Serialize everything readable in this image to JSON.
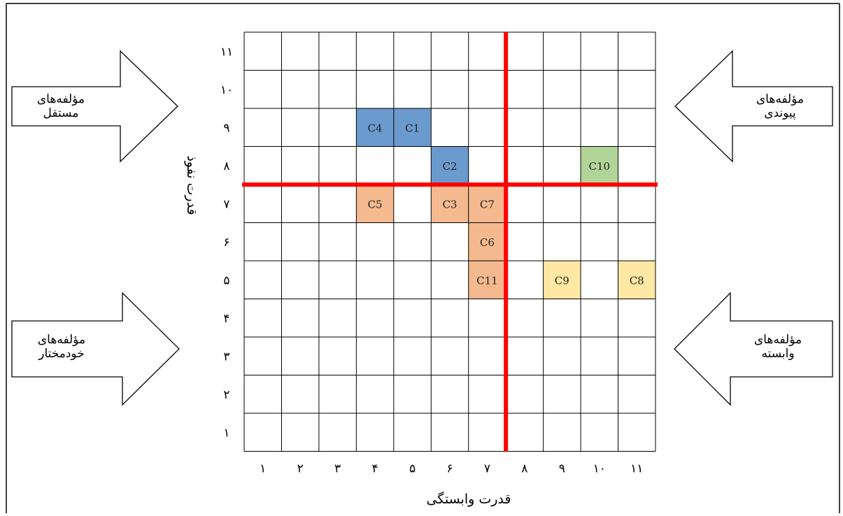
{
  "chart_data": {
    "type": "heatmap",
    "title": "",
    "xlabel": "قدرت وابستگی",
    "ylabel": "قدرت نفوذ",
    "x_ticks": [
      "۱",
      "۲",
      "۳",
      "۴",
      "۵",
      "۶",
      "۷",
      "۸",
      "۹",
      "۱۰",
      "۱۱"
    ],
    "y_ticks": [
      "۱",
      "۲",
      "۳",
      "۴",
      "۵",
      "۶",
      "۷",
      "۸",
      "۹",
      "۱۰",
      "۱۱"
    ],
    "xlim": [
      1,
      11
    ],
    "ylim": [
      1,
      11
    ],
    "threshold_x": 7.5,
    "threshold_y": 7.5,
    "grid": true,
    "group_colors": {
      "independent": "#5b8fc9",
      "linkage": "#a9d08e",
      "autonomous": "#f4b183",
      "dependent": "#ffe699",
      "divider": "#ff0000"
    },
    "points": [
      {
        "label": "C1",
        "x": 5,
        "y": 9,
        "group": "independent"
      },
      {
        "label": "C2",
        "x": 6,
        "y": 8,
        "group": "independent"
      },
      {
        "label": "C3",
        "x": 6,
        "y": 7,
        "group": "autonomous"
      },
      {
        "label": "C4",
        "x": 4,
        "y": 9,
        "group": "independent"
      },
      {
        "label": "C5",
        "x": 4,
        "y": 7,
        "group": "autonomous"
      },
      {
        "label": "C6",
        "x": 7,
        "y": 6,
        "group": "autonomous"
      },
      {
        "label": "C7",
        "x": 7,
        "y": 7,
        "group": "autonomous"
      },
      {
        "label": "C8",
        "x": 11,
        "y": 5,
        "group": "dependent"
      },
      {
        "label": "C9",
        "x": 9,
        "y": 5,
        "group": "dependent"
      },
      {
        "label": "C10",
        "x": 10,
        "y": 8,
        "group": "linkage"
      },
      {
        "label": "C11",
        "x": 7,
        "y": 5,
        "group": "autonomous"
      }
    ]
  },
  "quadrants": {
    "top_left": [
      "مؤلفه‌های",
      "مستقل"
    ],
    "top_right": [
      "مؤلفه‌های",
      "پیوندی"
    ],
    "bottom_left": [
      "مؤلفه‌های",
      "خودمختار"
    ],
    "bottom_right": [
      "مؤلفه‌های",
      "وابسته"
    ]
  }
}
